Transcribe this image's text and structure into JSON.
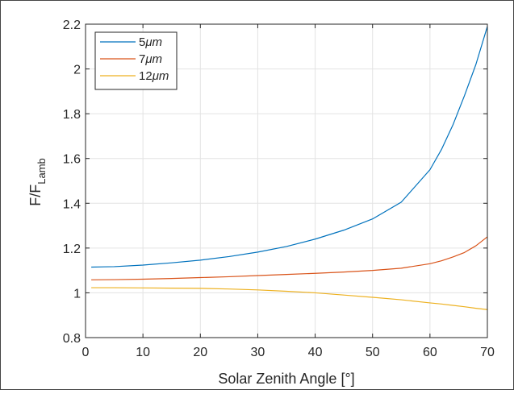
{
  "chart_data": {
    "type": "line",
    "xlabel": "Solar Zenith Angle [°]",
    "ylabel_main": "F/F",
    "ylabel_sub": "Lamb",
    "xlim": [
      0,
      70
    ],
    "ylim": [
      0.8,
      2.2
    ],
    "xticks": [
      0,
      10,
      20,
      30,
      40,
      50,
      60,
      70
    ],
    "xtick_labels": [
      "0",
      "10",
      "20",
      "30",
      "40",
      "50",
      "60",
      "70"
    ],
    "yticks": [
      0.8,
      1.0,
      1.2,
      1.4,
      1.6,
      1.8,
      2.0,
      2.2
    ],
    "ytick_labels": [
      "0.8",
      "1",
      "1.2",
      "1.4",
      "1.6",
      "1.8",
      "2",
      "2.2"
    ],
    "grid": true,
    "legend_position": "top-left",
    "x": [
      1,
      5,
      10,
      15,
      20,
      25,
      30,
      35,
      40,
      45,
      50,
      55,
      60,
      62,
      64,
      66,
      68,
      70
    ],
    "series": [
      {
        "name": "5μm",
        "legend_num": "5",
        "legend_unit": "μm",
        "color": "#0072BD",
        "values": [
          1.115,
          1.117,
          1.124,
          1.134,
          1.146,
          1.162,
          1.182,
          1.207,
          1.24,
          1.28,
          1.33,
          1.405,
          1.55,
          1.64,
          1.75,
          1.88,
          2.02,
          2.19
        ]
      },
      {
        "name": "7μm",
        "legend_num": "7",
        "legend_unit": "μm",
        "color": "#D95319",
        "values": [
          1.058,
          1.059,
          1.061,
          1.064,
          1.068,
          1.072,
          1.077,
          1.082,
          1.087,
          1.093,
          1.1,
          1.11,
          1.13,
          1.143,
          1.16,
          1.18,
          1.21,
          1.25
        ]
      },
      {
        "name": "12μm",
        "legend_num": "12",
        "legend_unit": "μm",
        "color": "#EDB120",
        "values": [
          1.023,
          1.023,
          1.022,
          1.021,
          1.02,
          1.017,
          1.013,
          1.007,
          1.0,
          0.99,
          0.98,
          0.969,
          0.955,
          0.95,
          0.944,
          0.938,
          0.931,
          0.925
        ]
      }
    ]
  }
}
